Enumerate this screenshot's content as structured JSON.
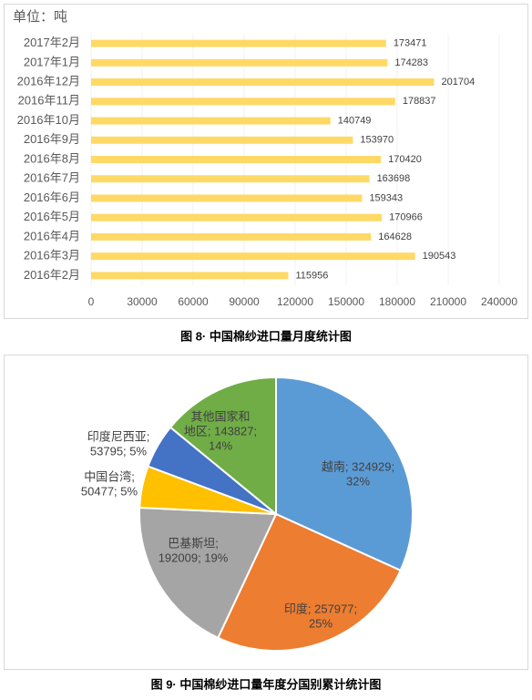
{
  "chart_data": [
    {
      "type": "hbar",
      "unit_label": "单位：吨",
      "caption": "图 8· 中国棉纱进口量月度统计图",
      "categories": [
        "2017年2月",
        "2017年1月",
        "2016年12月",
        "2016年11月",
        "2016年10月",
        "2016年9月",
        "2016年8月",
        "2016年7月",
        "2016年6月",
        "2016年5月",
        "2016年4月",
        "2016年3月",
        "2016年2月"
      ],
      "values": [
        173471,
        174283,
        201704,
        178837,
        140749,
        153970,
        170420,
        163698,
        159343,
        170966,
        164628,
        190543,
        115956
      ],
      "color": "#ffd966",
      "xlim": [
        0,
        240000
      ],
      "xticks": [
        0,
        30000,
        60000,
        90000,
        120000,
        150000,
        180000,
        210000,
        240000
      ],
      "grid": true
    },
    {
      "type": "pie",
      "caption": "图 9· 中国棉纱进口量年度分国别累计统计图",
      "categories": [
        "越南",
        "印度",
        "巴基斯坦",
        "中国台湾",
        "印度尼西亚",
        "其他国家和地区"
      ],
      "values": [
        324929,
        257977,
        192009,
        50477,
        53795,
        143827
      ],
      "colors": [
        "#5b9bd5",
        "#ed7d31",
        "#a5a5a5",
        "#ffc000",
        "#4472c4",
        "#70ad47"
      ],
      "data_labels": [
        [
          "越南; 324929;",
          "32%"
        ],
        [
          "印度; 257977;",
          "25%"
        ],
        [
          "巴基斯坦;",
          "192009; 19%"
        ],
        [
          "中国台湾;",
          "50477; 5%"
        ],
        [
          "印度尼西亚;",
          "53795; 5%"
        ],
        [
          "其他国家和",
          "地区; 143827;",
          "14%"
        ]
      ]
    }
  ]
}
